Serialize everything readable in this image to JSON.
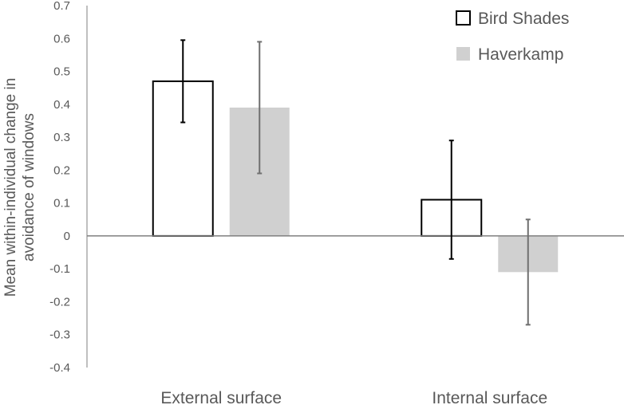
{
  "chart_data": {
    "type": "bar",
    "title": "",
    "xlabel": "",
    "ylabel_lines": [
      "Mean within-individual change in",
      "avoidance of windows"
    ],
    "ylim": [
      -0.4,
      0.7
    ],
    "yticks": [
      0.7,
      0.6,
      0.5,
      0.4,
      0.3,
      0.2,
      0.1,
      0,
      -0.1,
      -0.2,
      -0.3,
      -0.4
    ],
    "ytick_labels": [
      "0.7",
      "0.6",
      "0.5",
      "0.4",
      "0.3",
      "0.2",
      "0.1",
      "0",
      "-0.1",
      "-0.2",
      "-0.3",
      "-0.4"
    ],
    "categories": [
      "External surface",
      "Internal surface"
    ],
    "series": [
      {
        "name": "Bird Shades",
        "values": [
          0.47,
          0.11
        ],
        "error_low": [
          0.345,
          -0.07
        ],
        "error_high": [
          0.595,
          0.29
        ],
        "fill": "#ffffff",
        "stroke": "#000000"
      },
      {
        "name": "Haverkamp",
        "values": [
          0.39,
          -0.11
        ],
        "error_low": [
          0.19,
          -0.27
        ],
        "error_high": [
          0.59,
          0.05
        ],
        "fill": "#d0d0d0",
        "stroke": "none"
      }
    ],
    "legend_position": "top-right",
    "grid": false
  }
}
